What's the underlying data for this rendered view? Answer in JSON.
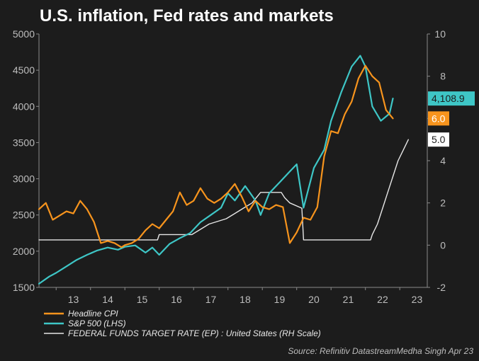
{
  "chart_data": {
    "type": "line",
    "title": "U.S. inflation, Fed rates and markets",
    "x_ticks": [
      "13",
      "14",
      "15",
      "16",
      "17",
      "18",
      "19",
      "20",
      "21",
      "22",
      "23"
    ],
    "x_range": [
      2012.5,
      2023.8
    ],
    "y_left": {
      "range": [
        1500,
        5000
      ],
      "ticks": [
        "1500",
        "2000",
        "2500",
        "3000",
        "3500",
        "4000",
        "4500",
        "5000"
      ]
    },
    "y_right": {
      "range": [
        -2,
        10
      ],
      "ticks": [
        "-2",
        "0",
        "2",
        "4",
        "6",
        "8",
        "10"
      ]
    },
    "colors": {
      "cpi": "#f7941d",
      "sp500": "#3ec6c6",
      "fed": "#e6e6e6",
      "background": "#1c1c1c"
    },
    "series": [
      {
        "name": "Headline CPI",
        "axis": "right",
        "x": [
          2012.5,
          2012.7,
          2012.9,
          2013.1,
          2013.3,
          2013.5,
          2013.7,
          2013.9,
          2014.1,
          2014.3,
          2014.5,
          2014.7,
          2014.9,
          2015.0,
          2015.2,
          2015.4,
          2015.6,
          2015.8,
          2016.0,
          2016.2,
          2016.4,
          2016.6,
          2016.8,
          2017.0,
          2017.2,
          2017.4,
          2017.6,
          2017.8,
          2018.0,
          2018.2,
          2018.4,
          2018.6,
          2018.8,
          2019.0,
          2019.2,
          2019.4,
          2019.6,
          2019.8,
          2020.0,
          2020.2,
          2020.4,
          2020.6,
          2020.8,
          2021.0,
          2021.2,
          2021.4,
          2021.6,
          2021.8,
          2022.0,
          2022.2,
          2022.4,
          2022.6,
          2022.8
        ],
        "values": [
          1.7,
          2.0,
          1.2,
          1.4,
          1.6,
          1.5,
          2.1,
          1.7,
          1.1,
          0.1,
          0.2,
          0.1,
          -0.1,
          0.0,
          0.1,
          0.3,
          0.7,
          1.0,
          0.8,
          1.2,
          1.6,
          2.5,
          1.9,
          2.1,
          2.7,
          2.2,
          2.0,
          2.2,
          2.5,
          2.9,
          2.3,
          1.6,
          2.1,
          1.8,
          1.7,
          1.9,
          1.8,
          0.1,
          0.6,
          1.3,
          1.2,
          1.8,
          4.2,
          5.4,
          5.3,
          6.2,
          6.8,
          7.9,
          8.5,
          8.0,
          7.7,
          6.4,
          6.0
        ]
      },
      {
        "name": "S&P 500 (LHS)",
        "axis": "left",
        "x": [
          2012.5,
          2012.8,
          2013.0,
          2013.3,
          2013.6,
          2013.9,
          2014.2,
          2014.5,
          2014.8,
          2015.0,
          2015.3,
          2015.6,
          2015.8,
          2016.0,
          2016.3,
          2016.6,
          2016.9,
          2017.2,
          2017.5,
          2017.8,
          2018.0,
          2018.2,
          2018.5,
          2018.8,
          2018.95,
          2019.2,
          2019.5,
          2019.8,
          2020.0,
          2020.2,
          2020.5,
          2020.8,
          2021.0,
          2021.3,
          2021.6,
          2021.85,
          2022.0,
          2022.2,
          2022.45,
          2022.7,
          2022.8
        ],
        "values": [
          1550,
          1650,
          1700,
          1790,
          1880,
          1950,
          2010,
          2050,
          2020,
          2060,
          2080,
          1980,
          2050,
          1950,
          2100,
          2180,
          2250,
          2400,
          2500,
          2600,
          2800,
          2700,
          2900,
          2700,
          2500,
          2800,
          2950,
          3100,
          3200,
          2600,
          3150,
          3400,
          3800,
          4200,
          4550,
          4700,
          4550,
          4000,
          3800,
          3900,
          4108.9
        ]
      },
      {
        "name": "FEDERAL FUNDS TARGET RATE (EP) : United States (RH Scale)",
        "axis": "right",
        "x": [
          2012.5,
          2015.95,
          2016.0,
          2016.95,
          2017.2,
          2017.45,
          2017.95,
          2018.2,
          2018.45,
          2018.7,
          2018.95,
          2019.55,
          2019.65,
          2019.8,
          2020.15,
          2020.2,
          2022.15,
          2022.2,
          2022.35,
          2022.5,
          2022.65,
          2022.8,
          2022.95,
          2023.1,
          2023.25
        ],
        "values": [
          0.25,
          0.25,
          0.5,
          0.5,
          0.75,
          1.0,
          1.25,
          1.5,
          1.75,
          2.0,
          2.5,
          2.5,
          2.25,
          2.0,
          1.75,
          0.25,
          0.25,
          0.5,
          1.0,
          1.75,
          2.5,
          3.25,
          4.0,
          4.5,
          5.0
        ]
      }
    ],
    "end_labels": {
      "sp500": "4,108.9",
      "cpi": "6.0",
      "fed": "5.0"
    },
    "legend": [
      {
        "label": "Headline CPI",
        "key": "cpi"
      },
      {
        "label": "S&P 500 (LHS)",
        "key": "sp500"
      },
      {
        "label": "FEDERAL FUNDS TARGET RATE (EP) : United States (RH Scale)",
        "key": "fed"
      }
    ],
    "source": "Source: Refinitiv DatastreamMedha Singh Apr 23"
  }
}
